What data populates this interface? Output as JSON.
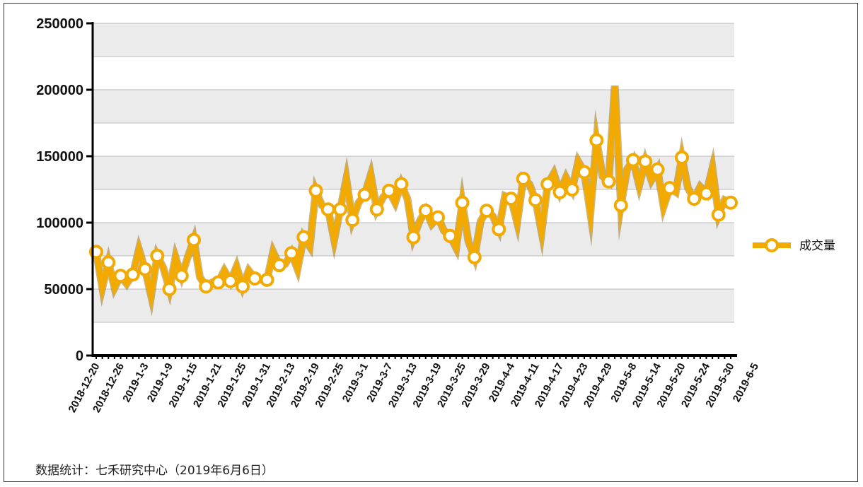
{
  "footer": {
    "source": "数据统计：七禾研究中心（2019年6月6日）"
  },
  "colors": {
    "series": "#F2A900",
    "marker_fill": "#ffffff",
    "band": "#EBEBEB",
    "grid": "#BBBBBB",
    "axis": "#000000"
  },
  "chart_data": {
    "type": "line",
    "title": "",
    "xlabel": "",
    "ylabel": "",
    "ylim": [
      0,
      250000
    ],
    "yticks": [
      0,
      50000,
      100000,
      150000,
      200000,
      250000
    ],
    "ytick_labels": [
      "0",
      "50000",
      "100000",
      "150000",
      "200000",
      "250000"
    ],
    "grid": true,
    "legend_position": "right",
    "x_tick_labels": [
      "2018-12-20",
      "2018-12-26",
      "2019-1-3",
      "2019-1-9",
      "2019-1-15",
      "2019-1-21",
      "2019-1-25",
      "2019-1-31",
      "2019-2-13",
      "2019-2-19",
      "2019-2-25",
      "2019-3-1",
      "2019-3-7",
      "2019-3-13",
      "2019-3-19",
      "2019-3-25",
      "2019-3-29",
      "2019-4-4",
      "2019-4-11",
      "2019-4-17",
      "2019-4-23",
      "2019-4-29",
      "2019-5-8",
      "2019-5-14",
      "2019-5-20",
      "2019-5-24",
      "2019-5-30",
      "2019-6-5"
    ],
    "x_tick_every": 4,
    "series": [
      {
        "name": "成交量",
        "values": [
          78000,
          51000,
          70000,
          51000,
          60000,
          54000,
          61000,
          80000,
          65000,
          45000,
          75000,
          66000,
          50000,
          74000,
          60000,
          74000,
          87000,
          59000,
          52000,
          55000,
          55000,
          64000,
          56000,
          67000,
          52000,
          64000,
          58000,
          57000,
          57000,
          78000,
          68000,
          69000,
          77000,
          65000,
          89000,
          82000,
          124000,
          113000,
          110000,
          87000,
          110000,
          133000,
          102000,
          115000,
          121000,
          136000,
          110000,
          119000,
          124000,
          115000,
          129000,
          118000,
          89000,
          101000,
          109000,
          99000,
          104000,
          94000,
          90000,
          81000,
          115000,
          86000,
          74000,
          101000,
          109000,
          105000,
          95000,
          120000,
          118000,
          100000,
          133000,
          129000,
          117000,
          93000,
          129000,
          137000,
          123000,
          134000,
          125000,
          146000,
          138000,
          107000,
          162000,
          135000,
          131000,
          203000,
          113000,
          140000,
          147000,
          128000,
          146000,
          132000,
          140000,
          112000,
          126000,
          123000,
          149000,
          126000,
          118000,
          127000,
          122000,
          141000,
          106000,
          117000,
          115000
        ],
        "markers": [
          0,
          2,
          4,
          6,
          8,
          10,
          12,
          14,
          16,
          18,
          20,
          22,
          24,
          26,
          28,
          30,
          32,
          34,
          36,
          38,
          40,
          42,
          44,
          46,
          48,
          50,
          52,
          54,
          56,
          58,
          60,
          62,
          64,
          66,
          68,
          70,
          72,
          74,
          76,
          78,
          80,
          82,
          84,
          86,
          88,
          90,
          92,
          94,
          96,
          98,
          100,
          102,
          104
        ]
      }
    ]
  }
}
